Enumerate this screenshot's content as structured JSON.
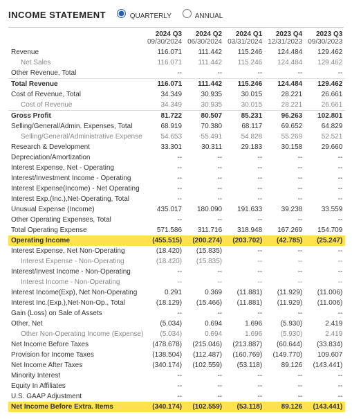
{
  "header": {
    "title": "INCOME STATEMENT",
    "period_options": [
      "QUARTERLY",
      "ANNUAL"
    ],
    "period_selected": "QUARTERLY"
  },
  "columns": [
    {
      "q": "2024 Q3",
      "d": "09/30/2024"
    },
    {
      "q": "2024 Q2",
      "d": "06/30/2024"
    },
    {
      "q": "2024 Q1",
      "d": "03/31/2024"
    },
    {
      "q": "2023 Q4",
      "d": "12/31/2023"
    },
    {
      "q": "2023 Q3",
      "d": "09/30/2023"
    }
  ],
  "rows": [
    {
      "label": "Revenue",
      "vals": [
        "116.071",
        "111.442",
        "115.246",
        "124.484",
        "129.462"
      ]
    },
    {
      "label": "Net Sales",
      "vals": [
        "116.071",
        "111.442",
        "115.246",
        "124.484",
        "129.462"
      ],
      "sub": true
    },
    {
      "label": "Other Revenue, Total",
      "vals": [
        "--",
        "--",
        "--",
        "--",
        "--"
      ]
    },
    {
      "label": "Total Revenue",
      "vals": [
        "116.071",
        "111.442",
        "115.246",
        "124.484",
        "129.462"
      ],
      "bold": true,
      "line": true
    },
    {
      "label": "Cost of Revenue, Total",
      "vals": [
        "34.349",
        "30.935",
        "30.015",
        "28.221",
        "26.661"
      ]
    },
    {
      "label": "Cost of Revenue",
      "vals": [
        "34.349",
        "30.935",
        "30.015",
        "28.221",
        "26.661"
      ],
      "sub": true
    },
    {
      "label": "Gross Profit",
      "vals": [
        "81.722",
        "80.507",
        "85.231",
        "96.263",
        "102.801"
      ],
      "bold": true,
      "line": true
    },
    {
      "label": "Selling/General/Admin. Expenses, Total",
      "vals": [
        "68.919",
        "70.380",
        "68.117",
        "69.652",
        "64.829"
      ]
    },
    {
      "label": "Selling/General/Administrative Expense",
      "vals": [
        "54.653",
        "55.491",
        "54.828",
        "55.269",
        "52.521"
      ],
      "sub": true
    },
    {
      "label": "Research & Development",
      "vals": [
        "33.301",
        "30.311",
        "29.183",
        "30.158",
        "29.660"
      ]
    },
    {
      "label": "Depreciation/Amortization",
      "vals": [
        "--",
        "--",
        "--",
        "--",
        "--"
      ]
    },
    {
      "label": "Interest Expense, Net - Operating",
      "vals": [
        "--",
        "--",
        "--",
        "--",
        "--"
      ]
    },
    {
      "label": "Interest/Investment Income - Operating",
      "vals": [
        "--",
        "--",
        "--",
        "--",
        "--"
      ]
    },
    {
      "label": "Interest Expense(Income) - Net Operating",
      "vals": [
        "--",
        "--",
        "--",
        "--",
        "--"
      ]
    },
    {
      "label": "Interest Exp.(Inc.),Net-Operating, Total",
      "vals": [
        "--",
        "--",
        "--",
        "--",
        "--"
      ]
    },
    {
      "label": "Unusual Expense (Income)",
      "vals": [
        "435.017",
        "180.090",
        "191.633",
        "39.238",
        "33.559"
      ]
    },
    {
      "label": "Other Operating Expenses, Total",
      "vals": [
        "--",
        "--",
        "--",
        "--",
        "--"
      ]
    },
    {
      "label": "Total Operating Expense",
      "vals": [
        "571.586",
        "311.716",
        "318.948",
        "167.269",
        "154.709"
      ]
    },
    {
      "label": "Operating Income",
      "vals": [
        "(455.515)",
        "(200.274)",
        "(203.702)",
        "(42.785)",
        "(25.247)"
      ],
      "hl": true
    },
    {
      "label": "Interest Expense, Net Non-Operating",
      "vals": [
        "(18.420)",
        "(15.835)",
        "--",
        "--",
        "--"
      ]
    },
    {
      "label": "Interest Expense - Non-Operating",
      "vals": [
        "(18.420)",
        "(15.835)",
        "--",
        "--",
        "--"
      ],
      "sub": true
    },
    {
      "label": "Interest/Invest Income - Non-Operating",
      "vals": [
        "--",
        "--",
        "--",
        "--",
        "--"
      ]
    },
    {
      "label": "Interest Income - Non-Operating",
      "vals": [
        "--",
        "--",
        "--",
        "--",
        "--"
      ],
      "sub": true
    },
    {
      "label": "Interest Income(Exp), Net Non-Operating",
      "vals": [
        "0.291",
        "0.369",
        "(11.881)",
        "(11.929)",
        "(11.006)"
      ]
    },
    {
      "label": "Interest Inc.(Exp.),Net-Non-Op., Total",
      "vals": [
        "(18.129)",
        "(15.466)",
        "(11.881)",
        "(11.929)",
        "(11.006)"
      ]
    },
    {
      "label": "Gain (Loss) on Sale of Assets",
      "vals": [
        "--",
        "--",
        "--",
        "--",
        "--"
      ]
    },
    {
      "label": "Other, Net",
      "vals": [
        "(5.034)",
        "0.694",
        "1.696",
        "(5.930)",
        "2.419"
      ]
    },
    {
      "label": "Other Non-Operating Income (Expense)",
      "vals": [
        "(5.034)",
        "0.694",
        "1.696",
        "(5.930)",
        "2.419"
      ],
      "sub": true
    },
    {
      "label": "Net Income Before Taxes",
      "vals": [
        "(478.678)",
        "(215.046)",
        "(213.887)",
        "(60.644)",
        "(33.834)"
      ]
    },
    {
      "label": "Provision for Income Taxes",
      "vals": [
        "(138.504)",
        "(112.487)",
        "(160.769)",
        "(149.770)",
        "109.607"
      ]
    },
    {
      "label": "Net Income After Taxes",
      "vals": [
        "(340.174)",
        "(102.559)",
        "(53.118)",
        "89.126",
        "(143.441)"
      ]
    },
    {
      "label": "Minority Interest",
      "vals": [
        "--",
        "--",
        "--",
        "--",
        "--"
      ]
    },
    {
      "label": "Equity In Affiliates",
      "vals": [
        "--",
        "--",
        "--",
        "--",
        "--"
      ]
    },
    {
      "label": "U.S. GAAP Adjustment",
      "vals": [
        "--",
        "--",
        "--",
        "--",
        "--"
      ]
    },
    {
      "label": "Net Income Before Extra. Items",
      "vals": [
        "(340.174)",
        "(102.559)",
        "(53.118)",
        "89.126",
        "(143.441)"
      ],
      "hl": true
    }
  ]
}
